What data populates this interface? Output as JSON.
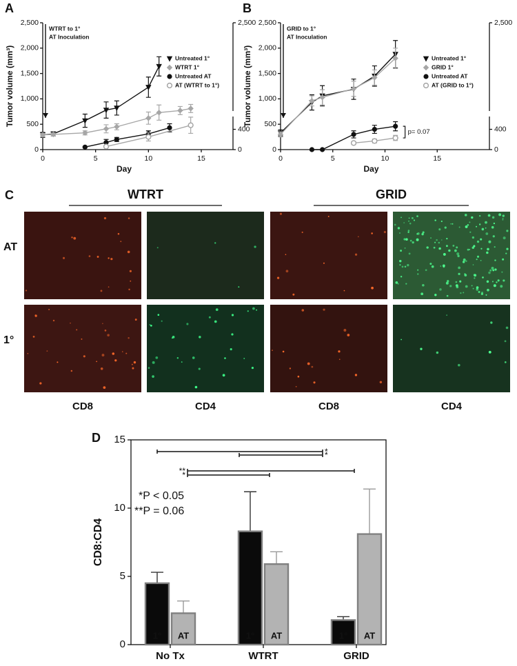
{
  "chart_data": [
    {
      "type": "line",
      "panel": "A",
      "xlabel": "Day",
      "ylabel": "Tumor volume (mm³)",
      "annotation": [
        "WTRT to 1°",
        "AT Inoculation"
      ],
      "xlim": [
        0,
        18
      ],
      "xticks": [
        0,
        5,
        10,
        15
      ],
      "ylim": [
        0,
        2500
      ],
      "yticks": [
        0,
        500,
        {
          "value": 1000,
          "label": "1,000"
        },
        {
          "value": 1500,
          "label": "1,500"
        },
        {
          "value": 2000,
          "label": "2,000"
        },
        {
          "value": 2500,
          "label": "2,500"
        }
      ],
      "y2lim": [
        0,
        2500
      ],
      "y2ticks": [
        0,
        400,
        {
          "value": 2500,
          "label": "2,500"
        }
      ],
      "legend": "upper right",
      "series": [
        {
          "name": "Untreated 1°",
          "color": "#111111",
          "marker": "triangle-down",
          "x": [
            0,
            1,
            4,
            6,
            7,
            10,
            11
          ],
          "values": [
            290,
            310,
            570,
            780,
            820,
            1230,
            1640
          ],
          "errors": [
            50,
            40,
            130,
            160,
            140,
            200,
            190
          ]
        },
        {
          "name": "WTRT 1°",
          "color": "#a6a6a6",
          "marker": "diamond",
          "x": [
            0,
            1,
            4,
            6,
            7,
            10,
            11,
            13,
            14
          ],
          "values": [
            290,
            300,
            330,
            410,
            450,
            620,
            730,
            770,
            810
          ],
          "errors": [
            30,
            30,
            40,
            80,
            60,
            120,
            150,
            80,
            80
          ]
        },
        {
          "name": "Untreated AT",
          "color": "#111111",
          "marker": "circle",
          "axis": "y2",
          "x": [
            4,
            6,
            7,
            10,
            12
          ],
          "values": [
            50,
            140,
            200,
            310,
            430
          ],
          "errors": [
            10,
            60,
            40,
            60,
            80
          ]
        },
        {
          "name": "AT (WTRT to 1°)",
          "color": "#a6a6a6",
          "marker": "circle-open",
          "axis": "y2",
          "x": [
            6,
            10,
            14
          ],
          "values": [
            60,
            250,
            480
          ],
          "errors": [
            20,
            80,
            160
          ]
        }
      ]
    },
    {
      "type": "line",
      "panel": "B",
      "xlabel": "Day",
      "ylabel": "Tumor volume (mm³)",
      "annotation": [
        "GRID to 1°",
        "AT Inoculation"
      ],
      "p_annotation": "p= 0.07",
      "xlim": [
        0,
        20
      ],
      "xticks": [
        0,
        5,
        10,
        15
      ],
      "ylim": [
        0,
        2500
      ],
      "yticks": [
        0,
        500,
        {
          "value": 1000,
          "label": "1,000"
        },
        {
          "value": 1500,
          "label": "1,500"
        },
        {
          "value": 2000,
          "label": "2,000"
        },
        {
          "value": 2500,
          "label": "2,500"
        }
      ],
      "y2lim": [
        0,
        2500
      ],
      "y2ticks": [
        0,
        400,
        {
          "value": 2500,
          "label": "2,500"
        }
      ],
      "legend": "upper right",
      "series": [
        {
          "name": "Untreated 1°",
          "color": "#111111",
          "marker": "triangle-down",
          "x": [
            0,
            3,
            4,
            7,
            9,
            11
          ],
          "values": [
            330,
            930,
            1060,
            1190,
            1450,
            1880
          ],
          "errors": [
            60,
            150,
            200,
            200,
            200,
            270
          ]
        },
        {
          "name": "GRID 1°",
          "color": "#a6a6a6",
          "marker": "diamond",
          "x": [
            0,
            3,
            4,
            7,
            9,
            11
          ],
          "values": [
            300,
            960,
            1030,
            1200,
            1420,
            1800
          ],
          "errors": [
            50,
            100,
            150,
            150,
            150,
            200
          ]
        },
        {
          "name": "Untreated AT",
          "color": "#111111",
          "marker": "circle",
          "axis": "y2",
          "x": [
            3,
            4,
            7,
            9,
            11
          ],
          "values": [
            0,
            0,
            300,
            400,
            460
          ],
          "errors": [
            0,
            0,
            70,
            80,
            90
          ]
        },
        {
          "name": "AT (GRID to 1°)",
          "color": "#a6a6a6",
          "marker": "circle-open",
          "axis": "y2",
          "x": [
            7,
            9,
            11
          ],
          "values": [
            130,
            170,
            230
          ],
          "errors": [
            30,
            40,
            50
          ]
        }
      ]
    },
    {
      "type": "bar",
      "panel": "D",
      "ylabel": "CD8:CD4",
      "categories": [
        "No Tx",
        "WTRT",
        "GRID"
      ],
      "ylim": [
        0,
        15
      ],
      "yticks": [
        0,
        5,
        10,
        15
      ],
      "annotations": [
        "*P < 0.05",
        "**P = 0.06"
      ],
      "significance_labels": [
        "*",
        "*",
        "**",
        "*"
      ],
      "series": [
        {
          "name": "1°",
          "color": "#0a0a0a",
          "values": [
            4.5,
            8.3,
            1.8
          ],
          "errors": [
            0.8,
            2.9,
            0.25
          ]
        },
        {
          "name": "AT",
          "color": "#b3b3b3",
          "values": [
            2.3,
            5.9,
            8.1
          ],
          "errors": [
            0.9,
            0.9,
            3.3
          ]
        }
      ]
    }
  ],
  "panel_c": {
    "label": "C",
    "groups": [
      "WTRT",
      "GRID"
    ],
    "rows": [
      "AT",
      "1°"
    ],
    "columns": [
      "CD8",
      "CD4",
      "CD8",
      "CD4"
    ]
  }
}
